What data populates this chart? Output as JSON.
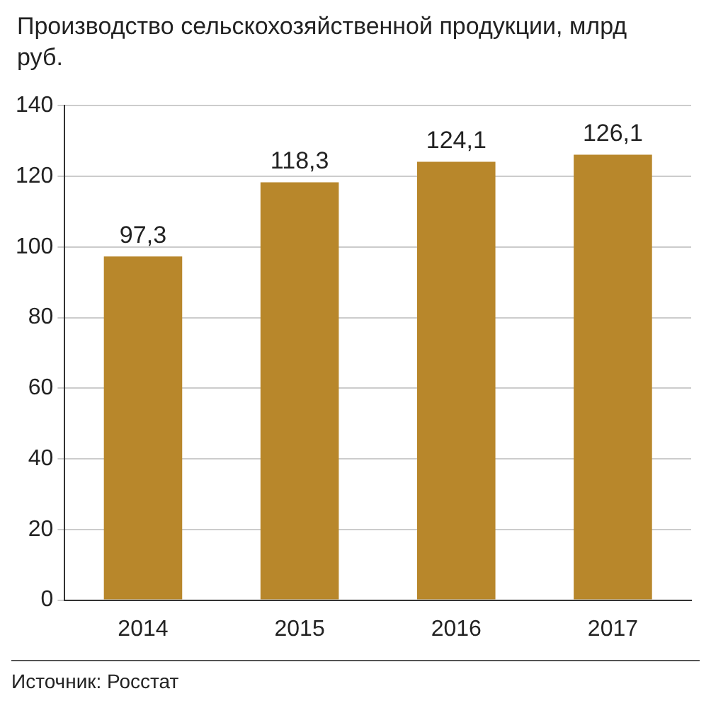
{
  "chart_data": {
    "type": "bar",
    "title": "Производство сельскохозяйственной продукции, млрд руб.",
    "categories": [
      "2014",
      "2015",
      "2016",
      "2017"
    ],
    "values": [
      97.3,
      118.3,
      124.1,
      126.1
    ],
    "color": "#b8872b",
    "ylim": [
      0,
      140
    ],
    "yticks": [
      0,
      20,
      40,
      60,
      80,
      100,
      120,
      140
    ],
    "grid": "y",
    "value_labels": [
      "97,3",
      "118,3",
      "124,1",
      "126,1"
    ],
    "annotations": [
      "Источник: Росстат"
    ]
  }
}
